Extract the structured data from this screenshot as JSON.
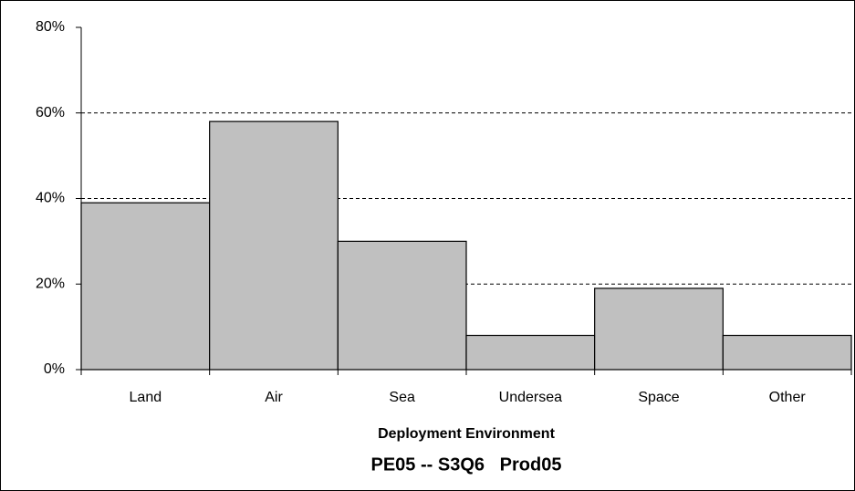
{
  "chart_data": {
    "type": "bar",
    "title": "PE05 -- S3Q6   Prod05",
    "x_label": "Deployment Environment",
    "categories": [
      "Land",
      "Air",
      "Sea",
      "Undersea",
      "Space",
      "Other"
    ],
    "values": [
      39,
      58,
      30,
      8,
      19,
      8
    ],
    "color": "#c0c0c0",
    "ylim": [
      0,
      80
    ],
    "yticks": [
      {
        "value": 0,
        "label": "0%"
      },
      {
        "value": 20,
        "label": "20%"
      },
      {
        "value": 40,
        "label": "40%"
      },
      {
        "value": 60,
        "label": "60%"
      },
      {
        "value": 80,
        "label": "80%"
      }
    ],
    "grid": true
  }
}
